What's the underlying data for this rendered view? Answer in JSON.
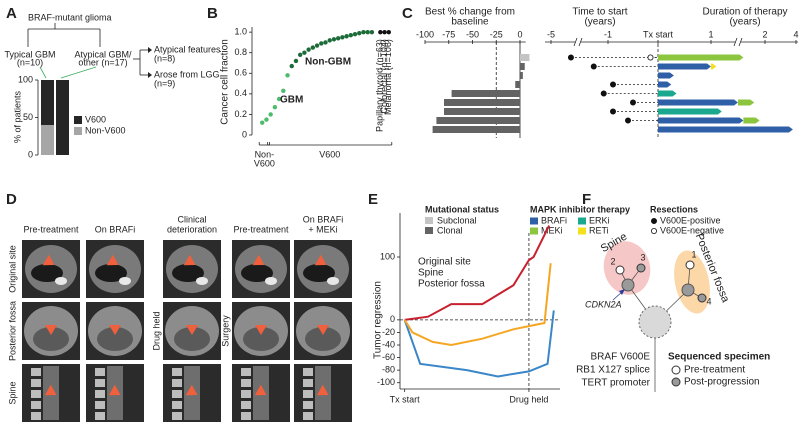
{
  "panel_labels": [
    "A",
    "B",
    "C",
    "D",
    "E",
    "F"
  ],
  "panel_a": {
    "root": "BRAF-mutant glioma",
    "typical": [
      "Typical GBM",
      "(n=10)"
    ],
    "atypical": [
      "Atypical GBM/",
      "other (n=17)"
    ],
    "atypical_features": [
      "Atypical features",
      "(n=8)"
    ],
    "arose_from_lgg": [
      "Arose from LGG",
      "(n=9)"
    ]
  },
  "chart_data": [
    {
      "type": "stacked_bar",
      "ylabel": "% of patients",
      "ylim": [
        0,
        100
      ],
      "yticks": [
        0,
        50,
        100
      ],
      "series": [
        {
          "name": "Non-V600",
          "color": "#a6a6a6",
          "values": [
            40,
            0
          ]
        },
        {
          "name": "V600",
          "color": "#262626",
          "values": [
            60,
            100
          ]
        }
      ]
    },
    {
      "type": "scatter",
      "ylabel": "Cancer cell fraction",
      "xlim": [
        0,
        32
      ],
      "ylim": [
        0,
        1.05
      ],
      "yticks": [
        0,
        0.2,
        0.4,
        0.6,
        0.8,
        {
          "value": 1,
          "label": "1.0"
        }
      ],
      "x_groups": [
        {
          "label": [
            "Non-",
            "V600"
          ],
          "range": [
            1,
            2
          ]
        },
        {
          "label": [
            "V600"
          ],
          "range": [
            3,
            31
          ]
        }
      ],
      "series": [
        {
          "name": "GBM",
          "color": "#4cbb6c",
          "x": [
            1,
            2,
            3,
            4,
            5,
            6,
            7
          ],
          "values": [
            0.12,
            0.15,
            0.2,
            0.27,
            0.35,
            0.43,
            0.58
          ]
        },
        {
          "name": "Non-GBM",
          "color": "#1d6b38",
          "x": [
            8,
            9,
            10,
            11,
            12,
            13,
            14,
            15,
            16,
            17,
            18,
            19,
            20,
            21,
            22,
            23,
            24,
            25,
            26,
            27
          ],
          "values": [
            0.67,
            0.72,
            0.78,
            0.8,
            0.83,
            0.85,
            0.87,
            0.89,
            0.9,
            0.92,
            0.93,
            0.94,
            0.95,
            0.96,
            0.97,
            0.98,
            0.99,
            1,
            1,
            1
          ]
        },
        {
          "name": "Papillary thyroid (n=63)",
          "color": "#111111",
          "x": [
            29
          ],
          "values": [
            1
          ]
        },
        {
          "name": "Colorectal (n=104)",
          "color": "#111111",
          "x": [
            30
          ],
          "values": [
            1
          ]
        },
        {
          "name": "Melanoma (n=106)",
          "color": "#111111",
          "x": [
            31
          ],
          "values": [
            1
          ]
        }
      ]
    },
    {
      "type": "hbar",
      "title": [
        "Best % change from",
        "baseline"
      ],
      "xlim": [
        -100,
        6
      ],
      "xticks": [
        -100,
        -75,
        -50,
        -25,
        0
      ],
      "reference_line": -25,
      "legend_title": "Mutational status",
      "series": [
        {
          "name": "Subclonal",
          "color": "#c4c4c4",
          "values": [
            10,
            null,
            null,
            null,
            null,
            null,
            null,
            null,
            null
          ]
        },
        {
          "name": "Clonal",
          "color": "#636363",
          "values": [
            null,
            5,
            3,
            -5,
            -72,
            -80,
            -80,
            -88,
            -92
          ]
        }
      ]
    },
    {
      "type": "swimmer",
      "title_left": [
        "Time to start",
        "(years)"
      ],
      "title_right": [
        "Duration of therapy",
        "(years)"
      ],
      "xticks": [
        -5,
        -1,
        {
          "value": 0,
          "label": "Tx start"
        },
        1,
        2,
        4
      ],
      "legend_title": "MAPK inhibitor therapy",
      "series": [
        {
          "name": "BRAFi",
          "color": "#2f5fa7",
          "values": [
            null,
            1.0,
            0.3,
            0.25,
            null,
            1.5,
            null,
            1.6,
            3.8
          ]
        },
        {
          "name": "ERKi",
          "color": "#1aa88f",
          "values": [
            null,
            null,
            null,
            null,
            0.35,
            null,
            1.2,
            null,
            null
          ]
        },
        {
          "name": "MEKi",
          "color": "#8cc63f",
          "values": [
            1.6,
            null,
            null,
            null,
            null,
            0.3,
            null,
            0.3,
            null
          ]
        },
        {
          "name": "RETi",
          "color": "#f3e11c",
          "values": [
            null,
            0.1,
            null,
            null,
            null,
            null,
            null,
            null,
            null
          ]
        }
      ],
      "resections": {
        "title": "Resections",
        "positive": {
          "name": "V600E-positive",
          "values": [
            -3.6,
            -2.0,
            null,
            -0.9,
            -1.3,
            -0.5,
            -0.9,
            -0.6,
            null
          ]
        },
        "negative": {
          "name": "V600E-negative",
          "values": [
            -0.15,
            null,
            null,
            null,
            null,
            null,
            null,
            null,
            null
          ]
        }
      }
    },
    {
      "type": "line",
      "ylabel": "Tumor regression",
      "xlim": [
        -0.3,
        10
      ],
      "xticks": [
        {
          "value": 0,
          "label": "Tx start"
        },
        {
          "value": 8,
          "label": "Drug held"
        }
      ],
      "ylim": [
        -110,
        170
      ],
      "yticks": [
        -100,
        -80,
        -60,
        -40,
        -20,
        0,
        100
      ],
      "zero_line": true,
      "series": [
        {
          "name": "Original site",
          "color": "#3a86c8",
          "x": [
            0,
            1,
            4,
            6,
            8,
            9.2,
            9.6
          ],
          "values": [
            0,
            -70,
            -80,
            -90,
            -82,
            -70,
            15
          ]
        },
        {
          "name": "Spine",
          "color": "#c8202f",
          "x": [
            0,
            1.5,
            3,
            5,
            7,
            8,
            8.3,
            9.3
          ],
          "values": [
            0,
            5,
            25,
            25,
            55,
            95,
            100,
            150
          ]
        },
        {
          "name": "Posterior fossa",
          "color": "#f5a623",
          "x": [
            0,
            0.5,
            1.8,
            3,
            5,
            7,
            8,
            9,
            9.4
          ],
          "values": [
            0,
            -20,
            -35,
            -40,
            -30,
            -15,
            -10,
            -5,
            90
          ]
        }
      ]
    }
  ],
  "panel_d": {
    "columns": [
      [
        "Pre-treatment"
      ],
      [
        "On BRAFi"
      ],
      [
        "Clinical",
        "deterioration"
      ],
      [
        "Pre-treatment"
      ],
      [
        "On BRAFi",
        "+ MEKi"
      ]
    ],
    "rows": [
      "Original site",
      "Posterior fossa",
      "Spine"
    ],
    "events": [
      "Drug held",
      "Surgery"
    ]
  },
  "panel_f": {
    "clones": [
      "Spine",
      "Posterior fossa"
    ],
    "nodes": [
      "1",
      "2",
      "3",
      "4"
    ],
    "gene": "CDKN2A",
    "trunk": [
      "BRAF V600E",
      "RB1 X127 splice",
      "TERT promoter"
    ],
    "legend": {
      "title": "Sequenced specimen",
      "items": [
        "Pre-treatment",
        "Post-progression"
      ]
    }
  }
}
